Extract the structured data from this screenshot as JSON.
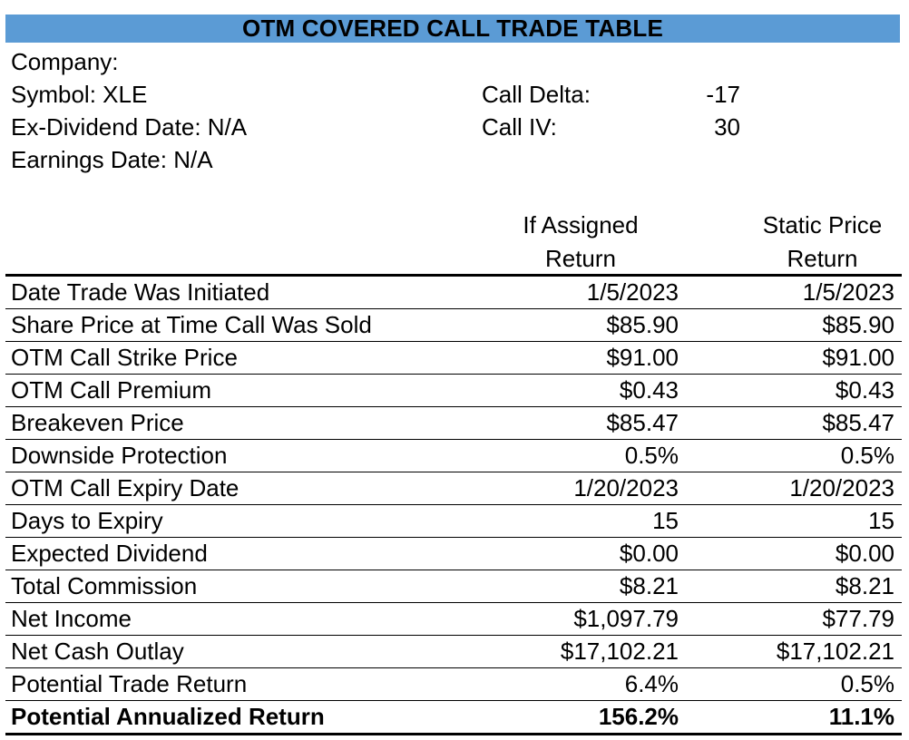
{
  "title": "OTM COVERED CALL TRADE TABLE",
  "info_left": [
    "Company:",
    "Symbol: XLE",
    "Ex-Dividend Date:  N/A",
    "Earnings Date: N/A"
  ],
  "call_delta": {
    "label": "Call Delta:",
    "value": "-17"
  },
  "call_iv": {
    "label": "Call IV:",
    "value": "30"
  },
  "columns": {
    "if_assigned": {
      "line1": "If Assigned",
      "line2": "Return"
    },
    "static": {
      "line1": "Static Price",
      "line2": "Return"
    }
  },
  "rows": [
    {
      "label": "Date Trade Was Initiated",
      "if_assigned": "1/5/2023",
      "static": "1/5/2023"
    },
    {
      "label": "Share Price at Time Call Was Sold",
      "if_assigned": "$85.90",
      "static": "$85.90"
    },
    {
      "label": "OTM Call Strike Price",
      "if_assigned": "$91.00",
      "static": "$91.00"
    },
    {
      "label": "OTM Call Premium",
      "if_assigned": "$0.43",
      "static": "$0.43"
    },
    {
      "label": "Breakeven Price",
      "if_assigned": "$85.47",
      "static": "$85.47"
    },
    {
      "label": "Downside Protection",
      "if_assigned": "0.5%",
      "static": "0.5%"
    },
    {
      "label": "OTM Call Expiry Date",
      "if_assigned": "1/20/2023",
      "static": "1/20/2023"
    },
    {
      "label": "Days to Expiry",
      "if_assigned": "15",
      "static": "15"
    },
    {
      "label": "Expected Dividend",
      "if_assigned": "$0.00",
      "static": "$0.00"
    },
    {
      "label": "Total Commission",
      "if_assigned": "$8.21",
      "static": "$8.21"
    },
    {
      "label": "Net Income",
      "if_assigned": "$1,097.79",
      "static": "$77.79"
    },
    {
      "label": "Net Cash Outlay",
      "if_assigned": "$17,102.21",
      "static": "$17,102.21"
    },
    {
      "label": "Potential Trade Return",
      "if_assigned": "6.4%",
      "static": "0.5%"
    },
    {
      "label": "Potential Annualized Return",
      "if_assigned": "156.2%",
      "static": "11.1%"
    }
  ],
  "colors": {
    "title_bar": "#5b9bd5"
  }
}
